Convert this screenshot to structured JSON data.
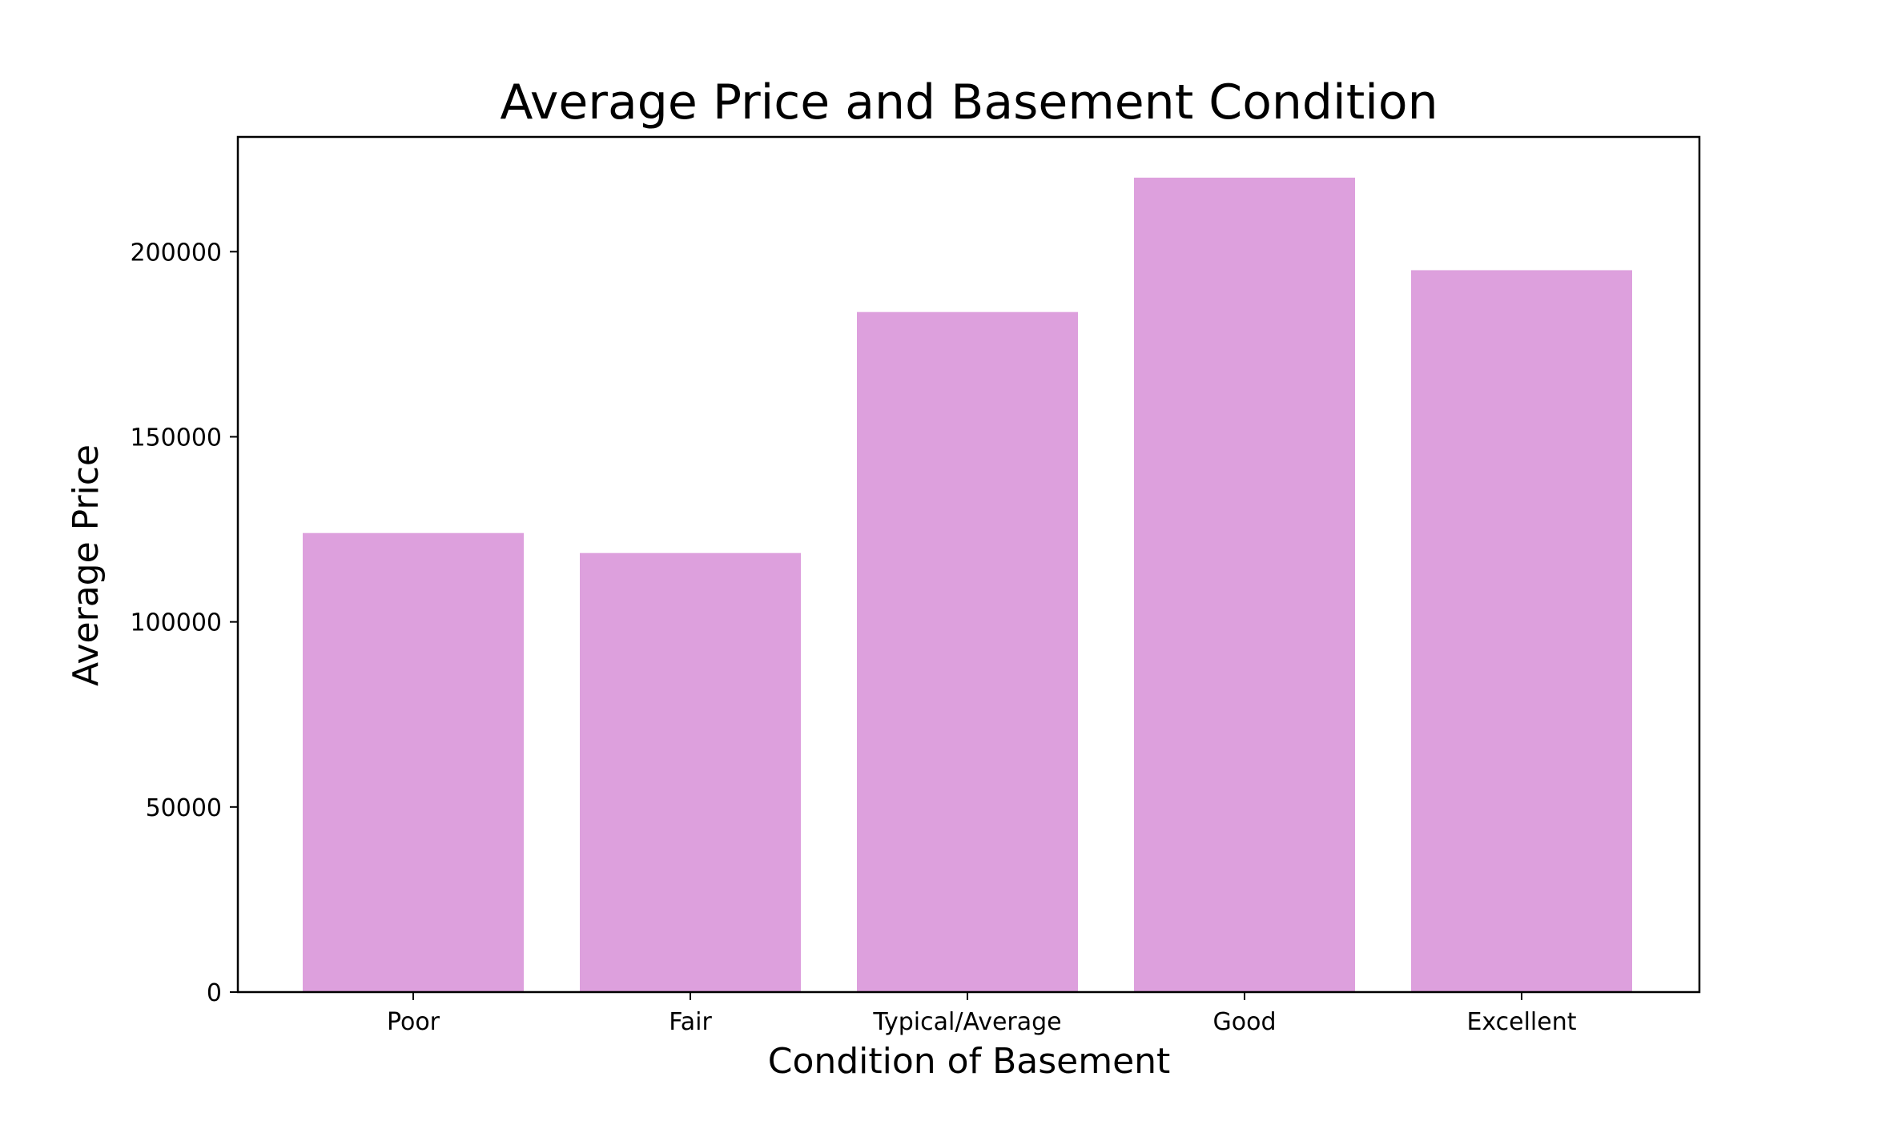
{
  "chart_data": {
    "type": "bar",
    "title": "Average Price and Basement Condition",
    "xlabel": "Condition of Basement",
    "ylabel": "Average Price",
    "categories": [
      "Poor",
      "Fair",
      "Typical/Average",
      "Good",
      "Excellent"
    ],
    "values": [
      124000,
      118600,
      183700,
      220000,
      195000
    ],
    "ylim": [
      0,
      231000
    ],
    "yticks": [
      0,
      50000,
      100000,
      150000,
      200000
    ],
    "ytick_labels": [
      "0",
      "50000",
      "100000",
      "150000",
      "200000"
    ],
    "grid": false,
    "legend": "none",
    "colors": {
      "bar": "#dda0dd",
      "axis": "#000000",
      "background": "#ffffff"
    }
  }
}
